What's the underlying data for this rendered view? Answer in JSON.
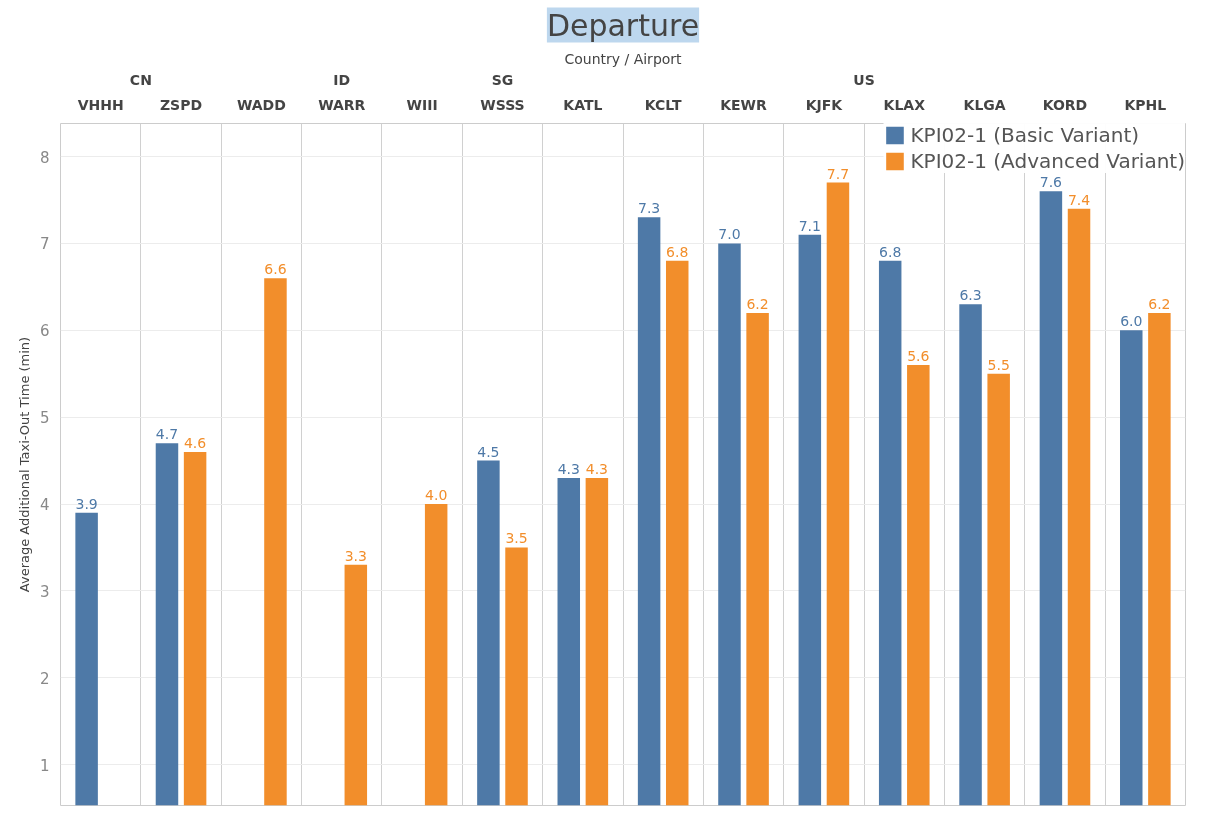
{
  "chart_data": {
    "type": "bar",
    "title": "Departure",
    "xlabel": "Country / Airport",
    "ylabel": "Average Additional Taxi-Out Time (min)",
    "categories": [
      "VHHH",
      "ZSPD",
      "WADD",
      "WARR",
      "WIII",
      "WSSS",
      "KATL",
      "KCLT",
      "KEWR",
      "KJFK",
      "KLAX",
      "KLGA",
      "KORD",
      "KPHL"
    ],
    "series": [
      {
        "name": "KPI02-1 (Basic Variant)",
        "color": "#4e79a7",
        "values": [
          3.9,
          4.7,
          null,
          null,
          null,
          4.5,
          4.3,
          7.3,
          7.0,
          7.1,
          6.8,
          6.3,
          7.6,
          6.0
        ],
        "value_labels": [
          "3.9",
          "4.7",
          null,
          null,
          null,
          "4.5",
          "4.3",
          "7.3",
          "7.0",
          "7.1",
          "6.8",
          "6.3",
          "7.6",
          "6.0"
        ]
      },
      {
        "name": "KPI02-1 (Advanced Variant)",
        "color": "#f28e2b",
        "values": [
          null,
          4.6,
          6.6,
          3.3,
          4.0,
          3.5,
          4.3,
          6.8,
          6.2,
          7.7,
          5.6,
          5.5,
          7.4,
          6.2
        ],
        "value_labels": [
          null,
          "4.6",
          "6.6",
          "3.3",
          "4.0",
          "3.5",
          "4.3",
          "6.8",
          "6.2",
          "7.7",
          "5.6",
          "5.5",
          "7.4",
          "6.2"
        ]
      }
    ],
    "annotations": [
      "CN",
      "ID",
      "SG",
      "US"
    ],
    "ylim": [
      0.53,
      8.38
    ],
    "yticks": [
      1,
      2,
      3,
      4,
      5,
      6,
      7,
      8
    ],
    "grid": true,
    "legend": "top right"
  }
}
